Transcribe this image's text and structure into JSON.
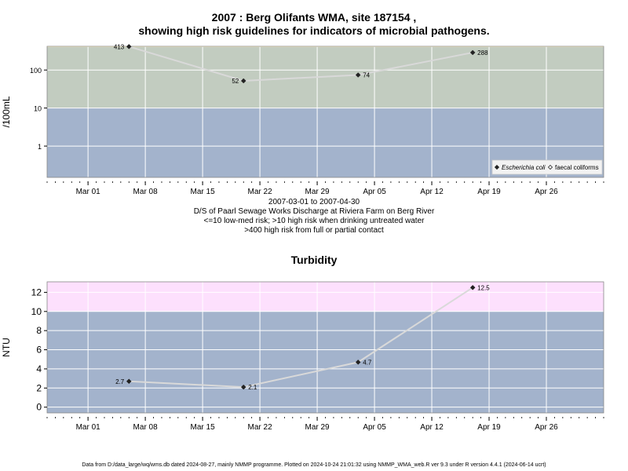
{
  "figure": {
    "title_line1": "2007 : Berg Olifants WMA, site 187154 ,",
    "title_line2": "showing high risk guidelines for indicators of microbial pathogens.",
    "caption": [
      "2007-03-01 to 2007-04-30",
      "D/S of Paarl Sewage Works Discharge at Riviera Farm on Berg River",
      "<=10 low-med risk; >10 high risk when drinking untreated water",
      ">400 high risk from full or partial contact"
    ],
    "footer": "Data from D:/data_large/wq/wms.db dated 2024-08-27, mainly NMMP programme. Plotted on 2024-10-24 21:01:32 using NMMP_WMA_web.R ver 9.3 under R version 4.4.1 (2024-06-14 ucrt)"
  },
  "chart_data": [
    {
      "type": "line",
      "ylabel": "/100mL",
      "scale": "log",
      "ylim": [
        0.15,
        420
      ],
      "xlim": [
        "2007-02-24",
        "2007-05-03"
      ],
      "x_ticks": [
        "2007-03-01",
        "2007-03-08",
        "2007-03-15",
        "2007-03-22",
        "2007-03-29",
        "2007-04-05",
        "2007-04-12",
        "2007-04-19",
        "2007-04-26"
      ],
      "x_tick_labels": [
        "Mar 01",
        "Mar 08",
        "Mar 15",
        "Mar 22",
        "Mar 29",
        "Apr 05",
        "Apr 12",
        "Apr 19",
        "Apr 26"
      ],
      "y_ticks": [
        1,
        10,
        100
      ],
      "y_tick_labels": [
        "1",
        "10",
        "100"
      ],
      "bands": [
        {
          "from": 0.15,
          "to": 10,
          "color": "#a3b3cc"
        },
        {
          "from": 10,
          "to": 400,
          "color": "#c2ccc0"
        },
        {
          "from": 400,
          "to": 420,
          "color": "#fdf5c9"
        }
      ],
      "grid": true,
      "legend_position": "bottom-right",
      "legend": [
        {
          "label": "Escherichia coli",
          "marker": "diamond-filled",
          "italic": true
        },
        {
          "label": "faecal coliforms",
          "marker": "diamond-open",
          "italic": false
        }
      ],
      "series": [
        {
          "name": "Escherichia coli",
          "color": "#d9d9d9",
          "x": [
            "2007-03-06",
            "2007-03-20",
            "2007-04-03",
            "2007-04-17"
          ],
          "values": [
            413,
            52,
            74,
            288
          ],
          "labels": [
            "413",
            "52",
            "74",
            "288"
          ],
          "label_side": [
            "left",
            "left",
            "right",
            "right"
          ]
        }
      ]
    },
    {
      "type": "line",
      "title": "Turbidity",
      "ylabel": "NTU",
      "scale": "linear",
      "ylim": [
        -0.6,
        13.1
      ],
      "xlim": [
        "2007-02-24",
        "2007-05-03"
      ],
      "x_ticks": [
        "2007-03-01",
        "2007-03-08",
        "2007-03-15",
        "2007-03-22",
        "2007-03-29",
        "2007-04-05",
        "2007-04-12",
        "2007-04-19",
        "2007-04-26"
      ],
      "x_tick_labels": [
        "Mar 01",
        "Mar 08",
        "Mar 15",
        "Mar 22",
        "Mar 29",
        "Apr 05",
        "Apr 12",
        "Apr 19",
        "Apr 26"
      ],
      "y_ticks": [
        0,
        2,
        4,
        6,
        8,
        10,
        12
      ],
      "y_tick_labels": [
        "0",
        "2",
        "4",
        "6",
        "8",
        "10",
        "12"
      ],
      "bands": [
        {
          "from": -0.6,
          "to": 10,
          "color": "#a3b3cc"
        },
        {
          "from": 10,
          "to": 13.1,
          "color": "#fde0fd"
        }
      ],
      "grid": true,
      "series": [
        {
          "color": "#d9d9d9",
          "x": [
            "2007-03-06",
            "2007-03-20",
            "2007-04-03",
            "2007-04-17"
          ],
          "values": [
            2.7,
            2.1,
            4.7,
            12.5
          ],
          "labels": [
            "2.7",
            "2.1",
            "4.7",
            "12.5"
          ],
          "label_side": [
            "left",
            "right",
            "right",
            "right"
          ]
        }
      ]
    }
  ]
}
